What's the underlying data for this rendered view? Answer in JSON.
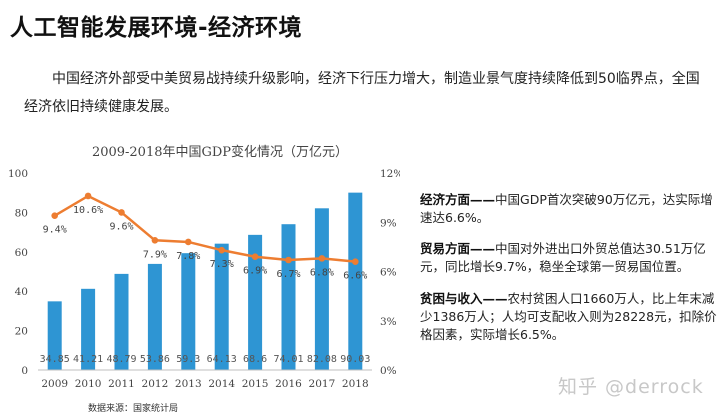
{
  "page": {
    "title": "人工智能发展环境-经济环境",
    "intro": "中国经济外部受中美贸易战持续升级影响，经济下行压力增大，制造业景气度持续降低到50临界点，全国经济依旧持续健康发展。",
    "source": "数据来源：国家统计局",
    "watermark": "知乎 @derrock"
  },
  "sidebar": {
    "economy": {
      "head": "经济方面——",
      "text": "中国GDP首次突破90万亿元，达实际增速达6.6%。"
    },
    "trade": {
      "head": "贸易方面——",
      "text": "中国对外进出口外贸总值达30.51万亿元，同比增长9.7%，稳坐全球第一贸易国位置。"
    },
    "poverty": {
      "head": "贫困与收入——",
      "text": "农村贫困人口1660万人，比上年末减少1386万人；人均可支配收入则为28228元，扣除价格因素，实际增长6.5%。"
    }
  },
  "chart_data": {
    "type": "bar+line",
    "title": "2009-2018年中国GDP变化情况（万亿元）",
    "categories": [
      "2009",
      "2010",
      "2011",
      "2012",
      "2013",
      "2014",
      "2015",
      "2016",
      "2017",
      "2018"
    ],
    "series": [
      {
        "type": "bar",
        "axis": "left",
        "color": "#2e95d3",
        "values": [
          34.85,
          41.21,
          48.79,
          53.86,
          59.3,
          64.13,
          68.6,
          74.01,
          82.08,
          90.03
        ],
        "labels": [
          "34.85",
          "41.21",
          "48.79",
          "53.86",
          "59.3",
          "64.13",
          "68.6",
          "74.01",
          "82.08",
          "90.03"
        ]
      },
      {
        "type": "line",
        "axis": "right",
        "color": "#ed7d31",
        "values": [
          9.4,
          10.6,
          9.6,
          7.9,
          7.8,
          7.3,
          6.9,
          6.7,
          6.8,
          6.6
        ],
        "labels": [
          "9.4%",
          "10.6%",
          "9.6%",
          "7.9%",
          "7.8%",
          "7.3%",
          "6.9%",
          "6.7%",
          "6.8%",
          "6.6%"
        ]
      }
    ],
    "y_left": {
      "min": 0,
      "max": 100,
      "ticks": [
        0,
        20,
        40,
        60,
        80,
        100
      ]
    },
    "y_right": {
      "min": 0,
      "max": 12,
      "ticks": [
        "0%",
        "3%",
        "6%",
        "9%",
        "12%"
      ]
    },
    "grid": false,
    "legend": "none"
  }
}
